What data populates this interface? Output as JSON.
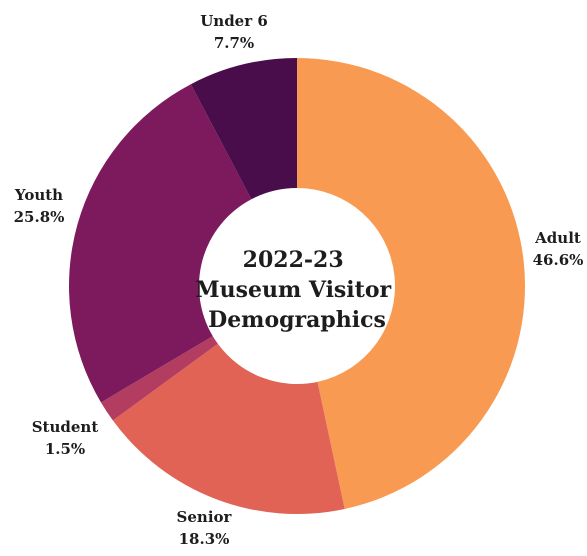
{
  "chart_data": {
    "type": "pie",
    "title_lines": [
      "2022-23",
      "Museum Visitor",
      "Demographics"
    ],
    "categories": [
      "Adult",
      "Senior",
      "Student",
      "Youth",
      "Under 6"
    ],
    "values": [
      46.6,
      18.3,
      1.5,
      25.8,
      7.7
    ],
    "value_labels": [
      "46.6%",
      "18.3%",
      "1.5%",
      "25.8%",
      "7.7%"
    ],
    "colors": [
      "#f99a52",
      "#e06355",
      "#b23d61",
      "#7c1a5d",
      "#4a0d4c"
    ],
    "donut": true,
    "start": "12 o'clock",
    "direction": "clockwise",
    "legend": "none",
    "label_placement": "outside"
  }
}
